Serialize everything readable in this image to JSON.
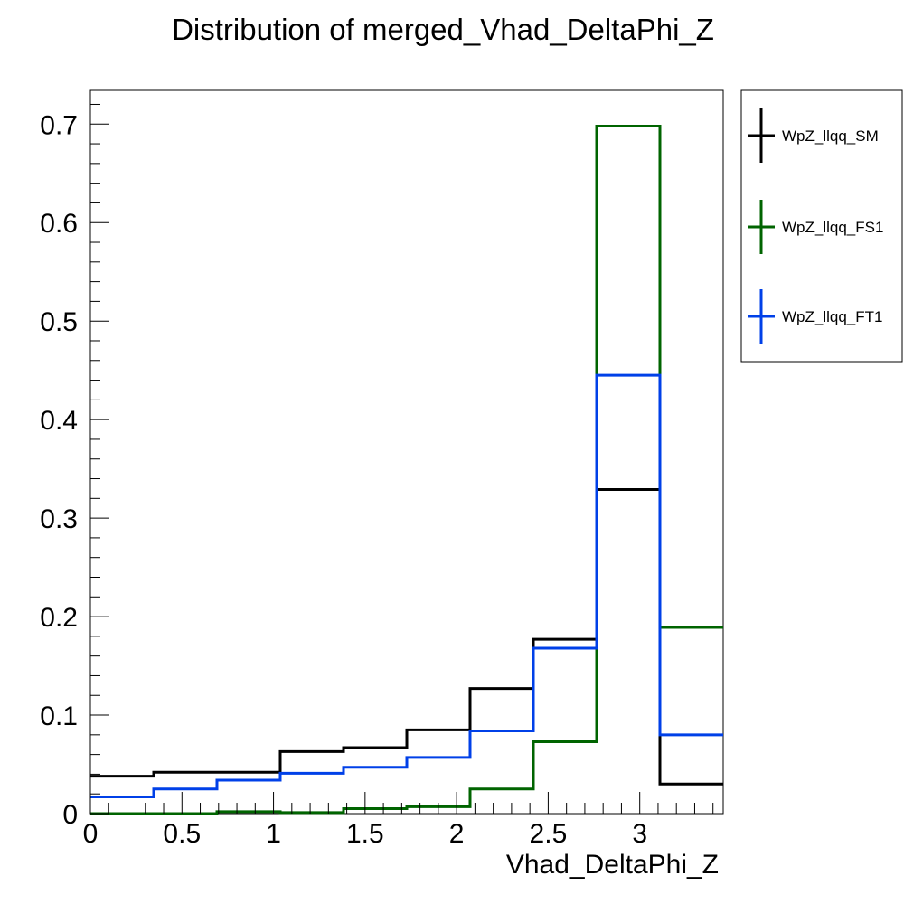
{
  "chart_data": {
    "type": "step",
    "title": "Distribution of merged_Vhad_DeltaPhi_Z",
    "xlabel": "Vhad_DeltaPhi_Z",
    "ylabel": "",
    "xlim": [
      0,
      3.4557
    ],
    "ylim": [
      0,
      0.7342
    ],
    "bin_edges": [
      0,
      0.3456,
      0.6911,
      1.0367,
      1.3823,
      1.7279,
      2.0734,
      2.419,
      2.7646,
      3.1101,
      3.4557
    ],
    "x_ticks": [
      {
        "value": 0,
        "label": "0"
      },
      {
        "value": 0.5,
        "label": "0.5"
      },
      {
        "value": 1,
        "label": "1"
      },
      {
        "value": 1.5,
        "label": "1.5"
      },
      {
        "value": 2,
        "label": "2"
      },
      {
        "value": 2.5,
        "label": "2.5"
      },
      {
        "value": 3,
        "label": "3"
      }
    ],
    "y_ticks": [
      {
        "value": 0,
        "label": "0"
      },
      {
        "value": 0.1,
        "label": "0.1"
      },
      {
        "value": 0.2,
        "label": "0.2"
      },
      {
        "value": 0.3,
        "label": "0.3"
      },
      {
        "value": 0.4,
        "label": "0.4"
      },
      {
        "value": 0.5,
        "label": "0.5"
      },
      {
        "value": 0.6,
        "label": "0.6"
      },
      {
        "value": 0.7,
        "label": "0.7"
      }
    ],
    "series": [
      {
        "name": "WpZ_llqq_SM",
        "color": "#000000",
        "values": [
          0.038,
          0.042,
          0.042,
          0.063,
          0.067,
          0.085,
          0.127,
          0.177,
          0.329,
          0.03
        ]
      },
      {
        "name": "WpZ_llqq_FS1",
        "color": "#006400",
        "values": [
          0.0,
          0.0,
          0.002,
          0.001,
          0.005,
          0.007,
          0.025,
          0.073,
          0.698,
          0.189
        ]
      },
      {
        "name": "WpZ_llqq_FT1",
        "color": "#0040e8",
        "values": [
          0.017,
          0.025,
          0.034,
          0.041,
          0.047,
          0.057,
          0.084,
          0.168,
          0.445,
          0.08
        ]
      }
    ],
    "legend": {
      "position": "right-outside-top",
      "entries": [
        "WpZ_llqq_SM",
        "WpZ_llqq_FS1",
        "WpZ_llqq_FT1"
      ]
    },
    "grid": false
  }
}
